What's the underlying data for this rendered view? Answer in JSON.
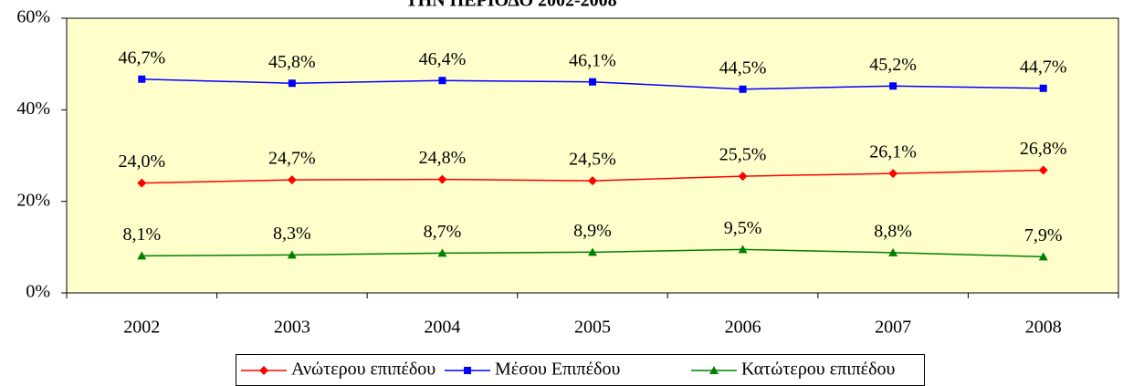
{
  "chart_data": {
    "type": "line",
    "title": "ΤΗΝ ΠΕΡΙΟΔΟ 2002-2008",
    "categories": [
      "2002",
      "2003",
      "2004",
      "2005",
      "2006",
      "2007",
      "2008"
    ],
    "series": [
      {
        "name": "Ανώτερου επιπέδου",
        "color": "#ff0000",
        "marker": "diamond",
        "values": [
          24.0,
          24.7,
          24.8,
          24.5,
          25.5,
          26.1,
          26.8
        ],
        "value_labels": [
          "24,0%",
          "24,7%",
          "24,8%",
          "24,5%",
          "25,5%",
          "26,1%",
          "26,8%"
        ]
      },
      {
        "name": "Μέσου Επιπέδου",
        "color": "#0000ff",
        "marker": "square",
        "values": [
          46.7,
          45.8,
          46.4,
          46.1,
          44.5,
          45.2,
          44.7
        ],
        "value_labels": [
          "46,7%",
          "45,8%",
          "46,4%",
          "46,1%",
          "44,5%",
          "45,2%",
          "44,7%"
        ]
      },
      {
        "name": "Κατώτερου επιπέδου",
        "color": "#008000",
        "marker": "triangle",
        "values": [
          8.1,
          8.3,
          8.7,
          8.9,
          9.5,
          8.8,
          7.9
        ],
        "value_labels": [
          "8,1%",
          "8,3%",
          "8,7%",
          "8,9%",
          "9,5%",
          "8,8%",
          "7,9%"
        ]
      }
    ],
    "ylim": [
      0,
      60
    ],
    "yticks": [
      {
        "value": 0,
        "label": "0%"
      },
      {
        "value": 20,
        "label": "20%"
      },
      {
        "value": 40,
        "label": "40%"
      },
      {
        "value": 60,
        "label": "60%"
      }
    ],
    "plot_background": "#ffffcc",
    "legend": "bottom"
  }
}
